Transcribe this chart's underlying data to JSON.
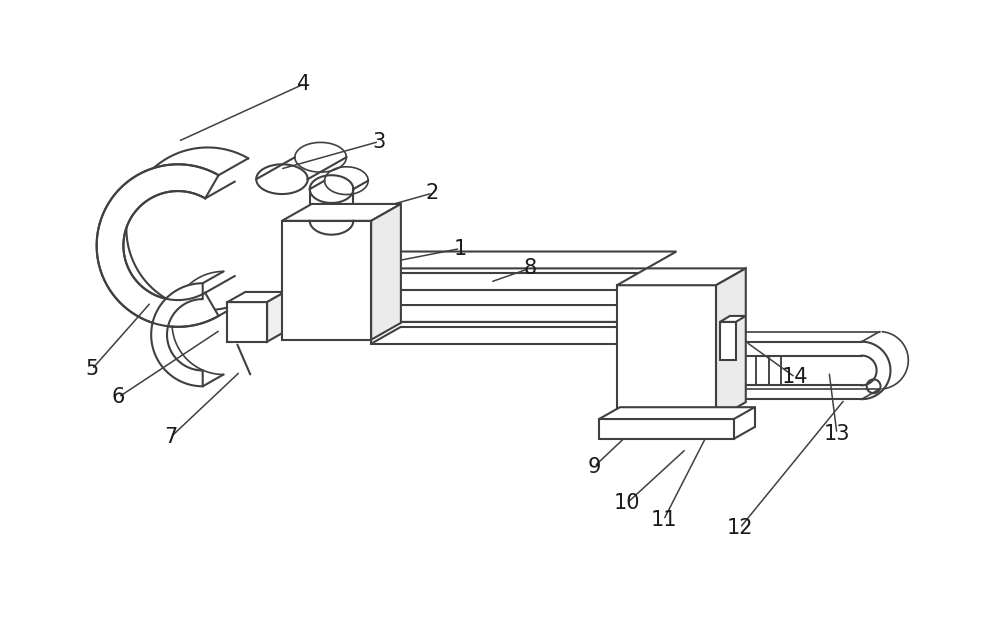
{
  "bg_color": "#ffffff",
  "line_color": "#404040",
  "lw": 1.5,
  "fig_width": 10.0,
  "fig_height": 6.18,
  "dpi": 100,
  "leaders": [
    [
      "1",
      460,
      248,
      388,
      262
    ],
    [
      "2",
      432,
      192,
      340,
      218
    ],
    [
      "3",
      378,
      140,
      278,
      168
    ],
    [
      "4",
      302,
      82,
      175,
      140
    ],
    [
      "5",
      88,
      370,
      148,
      302
    ],
    [
      "6",
      115,
      398,
      218,
      330
    ],
    [
      "7",
      168,
      438,
      238,
      372
    ],
    [
      "8",
      530,
      268,
      490,
      282
    ],
    [
      "9",
      595,
      468,
      648,
      418
    ],
    [
      "10",
      628,
      505,
      688,
      450
    ],
    [
      "11",
      665,
      522,
      730,
      395
    ],
    [
      "12",
      742,
      530,
      848,
      400
    ],
    [
      "13",
      840,
      435,
      832,
      372
    ],
    [
      "14",
      798,
      378,
      748,
      342
    ]
  ]
}
